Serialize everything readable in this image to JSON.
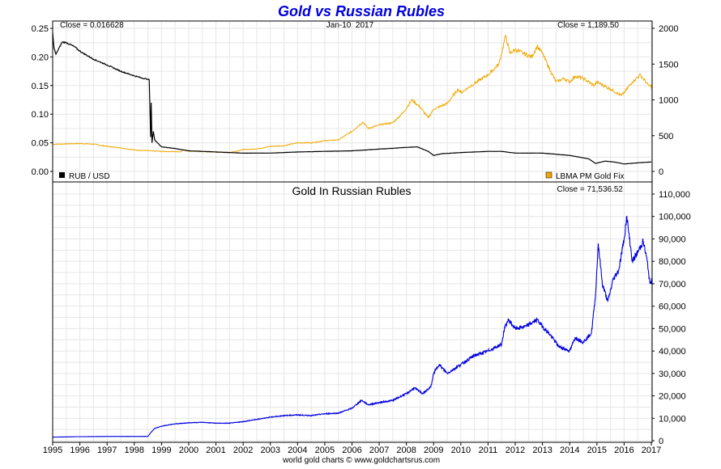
{
  "page": {
    "title": "Gold vs Russian Rubles",
    "footer": "world gold charts © www.goldchartsrus.com"
  },
  "colors": {
    "title": "#0000dd",
    "rub": "#000000",
    "gold": "#f0a800",
    "gold_rub": "#0000e0",
    "grid": "#e6e6e6",
    "frame": "#000000"
  },
  "chart_data": [
    {
      "type": "line",
      "title": "Gold vs Russian Rubles",
      "date_label": "Jan-10  2017",
      "x_ticks": [
        "1995",
        "1996",
        "1997",
        "1998",
        "1999",
        "2000",
        "2001",
        "2002",
        "2003",
        "2004",
        "2005",
        "2006",
        "2007",
        "2008",
        "2009",
        "2010",
        "2011",
        "2012",
        "2013",
        "2014",
        "2015",
        "2016",
        "2017"
      ],
      "xlim": [
        1995.0,
        2017.03
      ],
      "left_axis": {
        "ticks": [
          "0.25",
          "0.20",
          "0.15",
          "0.10",
          "0.05",
          "0.00"
        ],
        "ylim": [
          0,
          0.25
        ]
      },
      "right_axis": {
        "ticks": [
          "2000",
          "1500",
          "1000",
          "500",
          "0"
        ],
        "ylim": [
          0,
          2000
        ]
      },
      "series": [
        {
          "name": "RUB / USD",
          "axis": "left",
          "close_label": "Close = 0.016628",
          "points": [
            [
              1995.0,
              0.243
            ],
            [
              1995.05,
              0.215
            ],
            [
              1995.12,
              0.205
            ],
            [
              1995.2,
              0.212
            ],
            [
              1995.35,
              0.226
            ],
            [
              1995.5,
              0.225
            ],
            [
              1995.8,
              0.218
            ],
            [
              1996.0,
              0.21
            ],
            [
              1996.5,
              0.196
            ],
            [
              1997.0,
              0.186
            ],
            [
              1997.5,
              0.175
            ],
            [
              1998.0,
              0.167
            ],
            [
              1998.3,
              0.163
            ],
            [
              1998.5,
              0.161
            ],
            [
              1998.55,
              0.16
            ],
            [
              1998.6,
              0.06
            ],
            [
              1998.62,
              0.12
            ],
            [
              1998.65,
              0.05
            ],
            [
              1998.7,
              0.07
            ],
            [
              1998.75,
              0.055
            ],
            [
              1998.85,
              0.05
            ],
            [
              1999.0,
              0.043
            ],
            [
              1999.5,
              0.04
            ],
            [
              2000.0,
              0.036
            ],
            [
              2001.0,
              0.034
            ],
            [
              2002.0,
              0.032
            ],
            [
              2003.0,
              0.032
            ],
            [
              2004.0,
              0.034
            ],
            [
              2005.0,
              0.035
            ],
            [
              2006.0,
              0.036
            ],
            [
              2007.0,
              0.039
            ],
            [
              2008.0,
              0.042
            ],
            [
              2008.4,
              0.043
            ],
            [
              2008.8,
              0.035
            ],
            [
              2009.0,
              0.028
            ],
            [
              2009.3,
              0.031
            ],
            [
              2010.0,
              0.033
            ],
            [
              2011.0,
              0.035
            ],
            [
              2011.5,
              0.035
            ],
            [
              2012.0,
              0.032
            ],
            [
              2013.0,
              0.032
            ],
            [
              2014.0,
              0.028
            ],
            [
              2014.7,
              0.022
            ],
            [
              2014.95,
              0.014
            ],
            [
              2015.3,
              0.018
            ],
            [
              2015.7,
              0.016
            ],
            [
              2016.0,
              0.013
            ],
            [
              2016.5,
              0.015
            ],
            [
              2017.0,
              0.0166
            ]
          ]
        },
        {
          "name": "LBMA PM Gold Fix",
          "axis": "right",
          "close_label": "Close = 1,189.50",
          "points": [
            [
              1995.0,
              380
            ],
            [
              1995.5,
              385
            ],
            [
              1996.0,
              390
            ],
            [
              1996.5,
              382
            ],
            [
              1997.0,
              350
            ],
            [
              1997.5,
              330
            ],
            [
              1998.0,
              300
            ],
            [
              1999.0,
              280
            ],
            [
              1999.7,
              275
            ],
            [
              1999.8,
              300
            ],
            [
              2000.0,
              285
            ],
            [
              2001.0,
              270
            ],
            [
              2001.5,
              265
            ],
            [
              2002.0,
              305
            ],
            [
              2002.5,
              315
            ],
            [
              2003.0,
              350
            ],
            [
              2003.5,
              360
            ],
            [
              2004.0,
              400
            ],
            [
              2004.5,
              400
            ],
            [
              2005.0,
              430
            ],
            [
              2005.5,
              440
            ],
            [
              2006.0,
              560
            ],
            [
              2006.4,
              690
            ],
            [
              2006.6,
              600
            ],
            [
              2007.0,
              650
            ],
            [
              2007.5,
              680
            ],
            [
              2007.9,
              830
            ],
            [
              2008.2,
              1000
            ],
            [
              2008.5,
              900
            ],
            [
              2008.8,
              750
            ],
            [
              2009.0,
              870
            ],
            [
              2009.5,
              950
            ],
            [
              2009.9,
              1150
            ],
            [
              2010.0,
              1100
            ],
            [
              2010.5,
              1230
            ],
            [
              2011.0,
              1350
            ],
            [
              2011.4,
              1500
            ],
            [
              2011.65,
              1900
            ],
            [
              2011.8,
              1650
            ],
            [
              2012.0,
              1700
            ],
            [
              2012.3,
              1650
            ],
            [
              2012.6,
              1600
            ],
            [
              2012.8,
              1750
            ],
            [
              2013.0,
              1650
            ],
            [
              2013.3,
              1400
            ],
            [
              2013.5,
              1250
            ],
            [
              2013.8,
              1300
            ],
            [
              2014.0,
              1250
            ],
            [
              2014.2,
              1330
            ],
            [
              2014.5,
              1300
            ],
            [
              2014.9,
              1200
            ],
            [
              2015.0,
              1250
            ],
            [
              2015.5,
              1150
            ],
            [
              2015.9,
              1060
            ],
            [
              2016.0,
              1100
            ],
            [
              2016.3,
              1250
            ],
            [
              2016.6,
              1350
            ],
            [
              2016.9,
              1200
            ],
            [
              2017.03,
              1190
            ]
          ]
        }
      ]
    },
    {
      "type": "line",
      "title": "Gold In Russian Rubles",
      "x_ticks": [
        "1995",
        "1996",
        "1997",
        "1998",
        "1999",
        "2000",
        "2001",
        "2002",
        "2003",
        "2004",
        "2005",
        "2006",
        "2007",
        "2008",
        "2009",
        "2010",
        "2011",
        "2012",
        "2013",
        "2014",
        "2015",
        "2016",
        "2017"
      ],
      "xlim": [
        1995.0,
        2017.03
      ],
      "right_axis": {
        "ticks": [
          "110,000",
          "100,000",
          "90,000",
          "80,000",
          "70,000",
          "60,000",
          "50,000",
          "40,000",
          "30,000",
          "20,000",
          "10,000",
          "0"
        ],
        "ylim": [
          0,
          113000
        ]
      },
      "series": [
        {
          "name": "Gold In Russian Rubles",
          "axis": "right",
          "close_label": "Close = 71,536.52",
          "points": [
            [
              1995.0,
              1600
            ],
            [
              1996.0,
              1800
            ],
            [
              1997.0,
              1900
            ],
            [
              1998.0,
              1900
            ],
            [
              1998.5,
              1900
            ],
            [
              1998.6,
              3500
            ],
            [
              1998.75,
              5500
            ],
            [
              1999.0,
              6500
            ],
            [
              1999.5,
              7500
            ],
            [
              2000.0,
              8000
            ],
            [
              2000.5,
              8200
            ],
            [
              2001.0,
              7800
            ],
            [
              2001.5,
              7800
            ],
            [
              2002.0,
              8500
            ],
            [
              2002.5,
              9500
            ],
            [
              2003.0,
              10500
            ],
            [
              2003.5,
              11200
            ],
            [
              2004.0,
              11500
            ],
            [
              2004.5,
              11200
            ],
            [
              2005.0,
              12000
            ],
            [
              2005.5,
              12300
            ],
            [
              2006.0,
              14500
            ],
            [
              2006.35,
              18000
            ],
            [
              2006.6,
              16000
            ],
            [
              2007.0,
              17000
            ],
            [
              2007.5,
              18000
            ],
            [
              2008.0,
              21000
            ],
            [
              2008.3,
              23500
            ],
            [
              2008.6,
              21000
            ],
            [
              2008.9,
              24000
            ],
            [
              2009.0,
              30000
            ],
            [
              2009.2,
              34000
            ],
            [
              2009.5,
              30000
            ],
            [
              2010.0,
              34000
            ],
            [
              2010.5,
              38000
            ],
            [
              2011.0,
              40000
            ],
            [
              2011.5,
              43000
            ],
            [
              2011.6,
              50000
            ],
            [
              2011.75,
              54000
            ],
            [
              2012.0,
              50000
            ],
            [
              2012.4,
              51000
            ],
            [
              2012.8,
              54000
            ],
            [
              2013.0,
              51000
            ],
            [
              2013.3,
              47000
            ],
            [
              2013.6,
              42000
            ],
            [
              2014.0,
              40000
            ],
            [
              2014.2,
              46000
            ],
            [
              2014.5,
              44000
            ],
            [
              2014.8,
              48000
            ],
            [
              2014.95,
              65000
            ],
            [
              2015.05,
              88000
            ],
            [
              2015.2,
              70000
            ],
            [
              2015.4,
              62000
            ],
            [
              2015.6,
              72000
            ],
            [
              2015.8,
              76000
            ],
            [
              2016.0,
              90000
            ],
            [
              2016.1,
              100000
            ],
            [
              2016.3,
              80000
            ],
            [
              2016.5,
              84000
            ],
            [
              2016.7,
              89000
            ],
            [
              2016.85,
              80000
            ],
            [
              2016.95,
              70000
            ],
            [
              2017.03,
              71500
            ]
          ]
        }
      ]
    }
  ]
}
